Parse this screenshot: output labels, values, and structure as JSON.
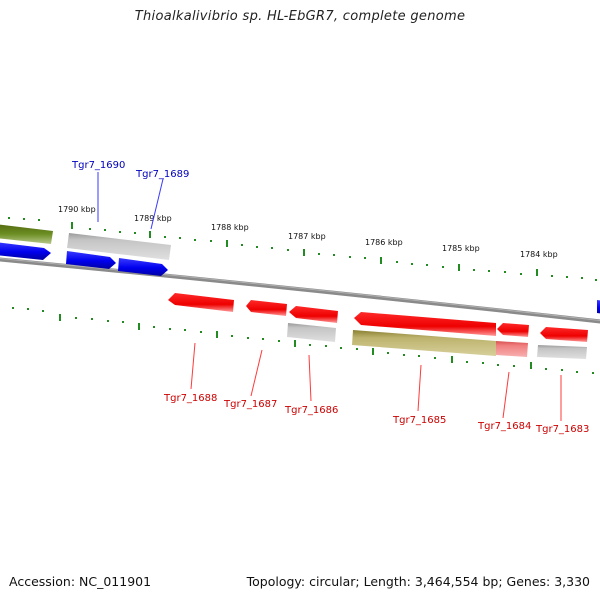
{
  "title": "Thioalkalivibrio sp. HL-EbGR7, complete genome",
  "footer": {
    "accession": "Accession: NC_011901",
    "summary": "Topology: circular; Length: 3,464,554 bp; Genes: 3,330"
  },
  "kbp_labels": [
    "1790 kbp",
    "1789 kbp",
    "1788 kbp",
    "1787 kbp",
    "1786 kbp",
    "1785 kbp",
    "1784 kbp"
  ],
  "genes_top": [
    "Tgr7_1690",
    "Tgr7_1689"
  ],
  "genes_bottom": [
    "Tgr7_1688",
    "Tgr7_1687",
    "Tgr7_1686",
    "Tgr7_1685",
    "Tgr7_1684",
    "Tgr7_1683"
  ],
  "colors": {
    "cds_forward": "#0000ff",
    "cds_reverse": "#ff0000",
    "gene_gray": "#bdbdbd",
    "gene_olive": "#a8a060",
    "gene_green": "#6b8e23",
    "backbone": "#808080",
    "tick": "#228b22"
  }
}
